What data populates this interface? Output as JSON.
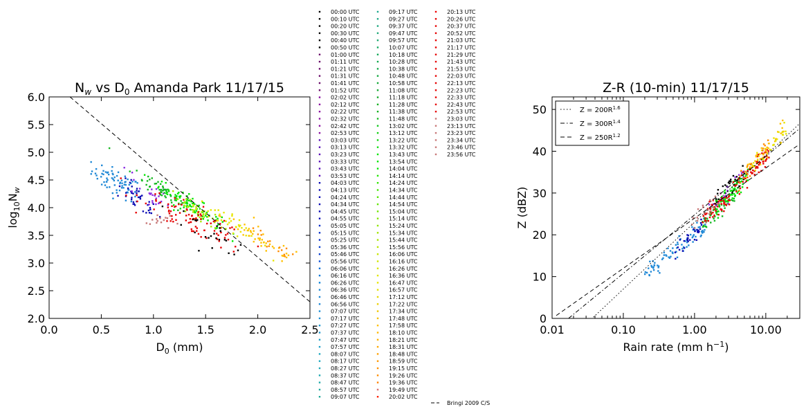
{
  "chart_data": [
    {
      "type": "scatter",
      "title": "N$_w$ vs D$_0$ Amanda Park 11/17/15",
      "title_parts": {
        "a": "N",
        "a_sub": "w",
        "b": " vs D",
        "b_sub": "0",
        "c": " Amanda Park 11/17/15"
      },
      "xlabel": "D$_0$ (mm)",
      "xlabel_parts": {
        "a": "D",
        "sub": "0",
        "b": " (mm)"
      },
      "ylabel": "log$_{10}$N$_w$",
      "ylabel_parts": {
        "a": "log",
        "sub1": "10",
        "b": "N",
        "sub2": "w"
      },
      "xlim": [
        0.0,
        2.5
      ],
      "ylim": [
        2.0,
        6.0
      ],
      "xticks": [
        "0.0",
        "0.5",
        "1.0",
        "1.5",
        "2.0",
        "2.5"
      ],
      "yticks": [
        "2.0",
        "2.5",
        "3.0",
        "3.5",
        "4.0",
        "4.5",
        "5.0",
        "5.5",
        "6.0"
      ],
      "reference_line": {
        "name": "Bringi 2009 C/S",
        "points": [
          [
            0.2,
            6.0
          ],
          [
            2.5,
            2.3
          ]
        ]
      },
      "clusters": [
        {
          "color": "#1f88d6",
          "xc": 0.65,
          "yc": 4.45,
          "sx": 0.12,
          "sy": 0.22,
          "n": 70,
          "slope": -0.9
        },
        {
          "color": "#0a0ab4",
          "xc": 0.85,
          "yc": 4.15,
          "sx": 0.1,
          "sy": 0.2,
          "n": 40,
          "slope": -1.2
        },
        {
          "color": "#8a2be2",
          "xc": 0.95,
          "yc": 4.3,
          "sx": 0.1,
          "sy": 0.25,
          "n": 25,
          "slope": -1.2
        },
        {
          "color": "#13b81f",
          "xc": 1.1,
          "yc": 4.3,
          "sx": 0.15,
          "sy": 0.15,
          "n": 50,
          "slope": -1.3
        },
        {
          "color": "#00e600",
          "xc": 1.35,
          "yc": 4.05,
          "sx": 0.15,
          "sy": 0.15,
          "n": 80,
          "slope": -1.2
        },
        {
          "color": "#a8e600",
          "xc": 1.45,
          "yc": 3.9,
          "sx": 0.15,
          "sy": 0.12,
          "n": 40,
          "slope": -1.2
        },
        {
          "color": "#e6e600",
          "xc": 1.7,
          "yc": 3.75,
          "sx": 0.2,
          "sy": 0.15,
          "n": 40,
          "slope": -1.1
        },
        {
          "color": "#ffc000",
          "xc": 2.05,
          "yc": 3.4,
          "sx": 0.2,
          "sy": 0.18,
          "n": 40,
          "slope": -1.1
        },
        {
          "color": "#ff8c00",
          "xc": 2.1,
          "yc": 3.35,
          "sx": 0.15,
          "sy": 0.15,
          "n": 15,
          "slope": -1.1
        },
        {
          "color": "#e60000",
          "xc": 1.4,
          "yc": 3.75,
          "sx": 0.25,
          "sy": 0.25,
          "n": 90,
          "slope": -0.9
        },
        {
          "color": "#c87878",
          "xc": 1.1,
          "yc": 3.75,
          "sx": 0.1,
          "sy": 0.1,
          "n": 15,
          "slope": -0.5
        },
        {
          "color": "#000000",
          "xc": 1.55,
          "yc": 3.55,
          "sx": 0.2,
          "sy": 0.2,
          "n": 25,
          "slope": -1.0
        }
      ]
    },
    {
      "type": "scatter",
      "title": "Z-R (10-min) 11/17/15",
      "xlabel": "Rain rate (mm h$^{-1}$)",
      "xlabel_parts": {
        "a": "Rain rate (mm h",
        "sup": "−1",
        "b": ")"
      },
      "ylabel": "Z (dBZ)",
      "xscale": "log",
      "xlim": [
        0.01,
        30
      ],
      "ylim": [
        0,
        53
      ],
      "xticks": [
        "0.01",
        "0.10",
        "1.00",
        "10.00"
      ],
      "yticks": [
        "0",
        "10",
        "20",
        "30",
        "40",
        "50"
      ],
      "relations": [
        {
          "label_a": "Z = 200R",
          "exp": "1.6",
          "a": 200,
          "b": 1.6,
          "style": "dotted"
        },
        {
          "label_a": "Z = 300R",
          "exp": "1.4",
          "a": 300,
          "b": 1.4,
          "style": "dashdot"
        },
        {
          "label_a": "Z = 250R",
          "exp": "1.2",
          "a": 250,
          "b": 1.2,
          "style": "dashed"
        }
      ],
      "clusters": [
        {
          "color": "#1f88d6",
          "lr0": -0.7,
          "lr1": 0.15,
          "n": 80,
          "zoff": -3.5
        },
        {
          "color": "#0a0ab4",
          "lr0": -0.3,
          "lr1": 0.1,
          "n": 30,
          "zoff": -2.5
        },
        {
          "color": "#13b81f",
          "lr0": 0.1,
          "lr1": 0.6,
          "n": 50,
          "zoff": -2.0
        },
        {
          "color": "#00e600",
          "lr0": 0.3,
          "lr1": 0.75,
          "n": 80,
          "zoff": -1.0
        },
        {
          "color": "#000000",
          "lr0": 0.3,
          "lr1": 0.7,
          "n": 30,
          "zoff": 1.0
        },
        {
          "color": "#8a2be2",
          "lr0": 0.2,
          "lr1": 0.7,
          "n": 20,
          "zoff": 0.5
        },
        {
          "color": "#e60000",
          "lr0": 0.1,
          "lr1": 1.05,
          "n": 110,
          "zoff": -1.0
        },
        {
          "color": "#ffc000",
          "lr0": 0.7,
          "lr1": 1.25,
          "n": 40,
          "zoff": 0.5
        },
        {
          "color": "#e6e600",
          "lr0": 0.8,
          "lr1": 1.3,
          "n": 30,
          "zoff": 0.0
        },
        {
          "color": "#ff8c00",
          "lr0": 0.6,
          "lr1": 1.05,
          "n": 20,
          "zoff": 0.5
        },
        {
          "color": "#c87878",
          "lr0": -0.1,
          "lr1": 0.4,
          "n": 20,
          "zoff": 0.5
        }
      ]
    }
  ],
  "legend": {
    "entries": [
      {
        "t": "00:00 UTC",
        "c": "#000000"
      },
      {
        "t": "00:10 UTC",
        "c": "#000000"
      },
      {
        "t": "00:20 UTC",
        "c": "#000000"
      },
      {
        "t": "00:30 UTC",
        "c": "#000000"
      },
      {
        "t": "00:40 UTC",
        "c": "#000000"
      },
      {
        "t": "00:50 UTC",
        "c": "#000000"
      },
      {
        "t": "01:00 UTC",
        "c": "#6a0a6a"
      },
      {
        "t": "01:11 UTC",
        "c": "#6a0a6a"
      },
      {
        "t": "01:21 UTC",
        "c": "#6a0a6a"
      },
      {
        "t": "01:31 UTC",
        "c": "#6a0a6a"
      },
      {
        "t": "01:41 UTC",
        "c": "#6a0a6a"
      },
      {
        "t": "01:52 UTC",
        "c": "#6a0a6a"
      },
      {
        "t": "02:02 UTC",
        "c": "#8a10a0"
      },
      {
        "t": "02:12 UTC",
        "c": "#8a10a0"
      },
      {
        "t": "02:22 UTC",
        "c": "#8a10a0"
      },
      {
        "t": "02:32 UTC",
        "c": "#8a10a0"
      },
      {
        "t": "02:42 UTC",
        "c": "#8a10a0"
      },
      {
        "t": "02:53 UTC",
        "c": "#8a10a0"
      },
      {
        "t": "03:03 UTC",
        "c": "#5a10b8"
      },
      {
        "t": "03:13 UTC",
        "c": "#5a10b8"
      },
      {
        "t": "03:23 UTC",
        "c": "#5a10b8"
      },
      {
        "t": "03:33 UTC",
        "c": "#5a10b8"
      },
      {
        "t": "03:43 UTC",
        "c": "#5a10b8"
      },
      {
        "t": "03:53 UTC",
        "c": "#5a10b8"
      },
      {
        "t": "04:03 UTC",
        "c": "#0a0ab4"
      },
      {
        "t": "04:13 UTC",
        "c": "#0a0ab4"
      },
      {
        "t": "04:24 UTC",
        "c": "#0a0ab4"
      },
      {
        "t": "04:34 UTC",
        "c": "#0a0ab4"
      },
      {
        "t": "04:45 UTC",
        "c": "#0a0ab4"
      },
      {
        "t": "04:55 UTC",
        "c": "#0a0ab4"
      },
      {
        "t": "05:05 UTC",
        "c": "#0a30c8"
      },
      {
        "t": "05:15 UTC",
        "c": "#0a30c8"
      },
      {
        "t": "05:25 UTC",
        "c": "#0a30c8"
      },
      {
        "t": "05:36 UTC",
        "c": "#0a40d0"
      },
      {
        "t": "05:46 UTC",
        "c": "#0a40d0"
      },
      {
        "t": "05:56 UTC",
        "c": "#0a50d8"
      },
      {
        "t": "06:06 UTC",
        "c": "#0a70d8"
      },
      {
        "t": "06:16 UTC",
        "c": "#0a78d8"
      },
      {
        "t": "06:26 UTC",
        "c": "#0a80d8"
      },
      {
        "t": "06:36 UTC",
        "c": "#1f88d6"
      },
      {
        "t": "06:46 UTC",
        "c": "#1f88d6"
      },
      {
        "t": "06:56 UTC",
        "c": "#1f88d6"
      },
      {
        "t": "07:07 UTC",
        "c": "#1f90d6"
      },
      {
        "t": "07:17 UTC",
        "c": "#1f90d6"
      },
      {
        "t": "07:27 UTC",
        "c": "#1f98d0"
      },
      {
        "t": "07:37 UTC",
        "c": "#1f98d0"
      },
      {
        "t": "07:47 UTC",
        "c": "#1fa0c8"
      },
      {
        "t": "07:57 UTC",
        "c": "#1fa0c8"
      },
      {
        "t": "08:07 UTC",
        "c": "#1fa8c0"
      },
      {
        "t": "08:17 UTC",
        "c": "#1fa8c0"
      },
      {
        "t": "08:27 UTC",
        "c": "#1fa8b8"
      },
      {
        "t": "08:37 UTC",
        "c": "#1fa8b0"
      },
      {
        "t": "08:47 UTC",
        "c": "#1fa8a8"
      },
      {
        "t": "08:57 UTC",
        "c": "#1fa8a0"
      },
      {
        "t": "09:07 UTC",
        "c": "#1fa898"
      },
      {
        "t": "09:17 UTC",
        "c": "#1fa890"
      },
      {
        "t": "09:27 UTC",
        "c": "#1fa888"
      },
      {
        "t": "09:37 UTC",
        "c": "#1fa880"
      },
      {
        "t": "09:47 UTC",
        "c": "#1fa878"
      },
      {
        "t": "09:57 UTC",
        "c": "#1fa870"
      },
      {
        "t": "10:07 UTC",
        "c": "#13a860"
      },
      {
        "t": "10:18 UTC",
        "c": "#13a858"
      },
      {
        "t": "10:28 UTC",
        "c": "#13a850"
      },
      {
        "t": "10:38 UTC",
        "c": "#13a848"
      },
      {
        "t": "10:48 UTC",
        "c": "#13a840"
      },
      {
        "t": "10:58 UTC",
        "c": "#13a838"
      },
      {
        "t": "11:08 UTC",
        "c": "#13a830"
      },
      {
        "t": "11:18 UTC",
        "c": "#13a828"
      },
      {
        "t": "11:28 UTC",
        "c": "#13b020"
      },
      {
        "t": "11:38 UTC",
        "c": "#13b020"
      },
      {
        "t": "11:48 UTC",
        "c": "#13b81f"
      },
      {
        "t": "13:02 UTC",
        "c": "#13c81f"
      },
      {
        "t": "13:12 UTC",
        "c": "#10d010"
      },
      {
        "t": "13:22 UTC",
        "c": "#10d810"
      },
      {
        "t": "13:32 UTC",
        "c": "#10e010"
      },
      {
        "t": "13:43 UTC",
        "c": "#00e600"
      },
      {
        "t": "13:54 UTC",
        "c": "#00e600"
      },
      {
        "t": "14:04 UTC",
        "c": "#00e600"
      },
      {
        "t": "14:14 UTC",
        "c": "#20e600"
      },
      {
        "t": "14:24 UTC",
        "c": "#30e600"
      },
      {
        "t": "14:34 UTC",
        "c": "#40e600"
      },
      {
        "t": "14:44 UTC",
        "c": "#50e600"
      },
      {
        "t": "14:54 UTC",
        "c": "#60e600"
      },
      {
        "t": "15:04 UTC",
        "c": "#70e600"
      },
      {
        "t": "15:14 UTC",
        "c": "#80e600"
      },
      {
        "t": "15:24 UTC",
        "c": "#90e600"
      },
      {
        "t": "15:34 UTC",
        "c": "#a0e600"
      },
      {
        "t": "15:44 UTC",
        "c": "#a8e600"
      },
      {
        "t": "15:56 UTC",
        "c": "#b8e600"
      },
      {
        "t": "16:06 UTC",
        "c": "#c8e600"
      },
      {
        "t": "16:16 UTC",
        "c": "#d0e600"
      },
      {
        "t": "16:26 UTC",
        "c": "#d8e600"
      },
      {
        "t": "16:36 UTC",
        "c": "#e0e600"
      },
      {
        "t": "16:47 UTC",
        "c": "#e6e600"
      },
      {
        "t": "16:57 UTC",
        "c": "#e6e000"
      },
      {
        "t": "17:12 UTC",
        "c": "#e6d800"
      },
      {
        "t": "17:22 UTC",
        "c": "#ecd000"
      },
      {
        "t": "17:34 UTC",
        "c": "#f0c800"
      },
      {
        "t": "17:48 UTC",
        "c": "#f4c000"
      },
      {
        "t": "17:58 UTC",
        "c": "#ffc000"
      },
      {
        "t": "18:10 UTC",
        "c": "#ffb800"
      },
      {
        "t": "18:21 UTC",
        "c": "#ffb000"
      },
      {
        "t": "18:31 UTC",
        "c": "#ffa800"
      },
      {
        "t": "18:48 UTC",
        "c": "#ffa000"
      },
      {
        "t": "18:59 UTC",
        "c": "#ff9800"
      },
      {
        "t": "19:15 UTC",
        "c": "#ff9000"
      },
      {
        "t": "19:26 UTC",
        "c": "#ff8c00"
      },
      {
        "t": "19:36 UTC",
        "c": "#ff8000"
      },
      {
        "t": "19:49 UTC",
        "c": "#d87070"
      },
      {
        "t": "20:02 UTC",
        "c": "#ff2000"
      },
      {
        "t": "20:13 UTC",
        "c": "#f00000"
      },
      {
        "t": "20:26 UTC",
        "c": "#e60000"
      },
      {
        "t": "20:37 UTC",
        "c": "#e60000"
      },
      {
        "t": "20:52 UTC",
        "c": "#e60000"
      },
      {
        "t": "21:03 UTC",
        "c": "#e60000"
      },
      {
        "t": "21:17 UTC",
        "c": "#e60000"
      },
      {
        "t": "21:29 UTC",
        "c": "#e60000"
      },
      {
        "t": "21:43 UTC",
        "c": "#e60000"
      },
      {
        "t": "21:53 UTC",
        "c": "#e60000"
      },
      {
        "t": "22:03 UTC",
        "c": "#e60000"
      },
      {
        "t": "22:13 UTC",
        "c": "#e60000"
      },
      {
        "t": "22:23 UTC",
        "c": "#e60000"
      },
      {
        "t": "22:33 UTC",
        "c": "#e60000"
      },
      {
        "t": "22:43 UTC",
        "c": "#e60000"
      },
      {
        "t": "22:53 UTC",
        "c": "#e60000"
      },
      {
        "t": "23:03 UTC",
        "c": "#c87878"
      },
      {
        "t": "23:13 UTC",
        "c": "#c87878"
      },
      {
        "t": "23:23 UTC",
        "c": "#c87878"
      },
      {
        "t": "23:34 UTC",
        "c": "#c87878"
      },
      {
        "t": "23:46 UTC",
        "c": "#c87878"
      },
      {
        "t": "23:56 UTC",
        "c": "#c87878"
      }
    ],
    "line_entry": "Bringi 2009 C/S"
  }
}
